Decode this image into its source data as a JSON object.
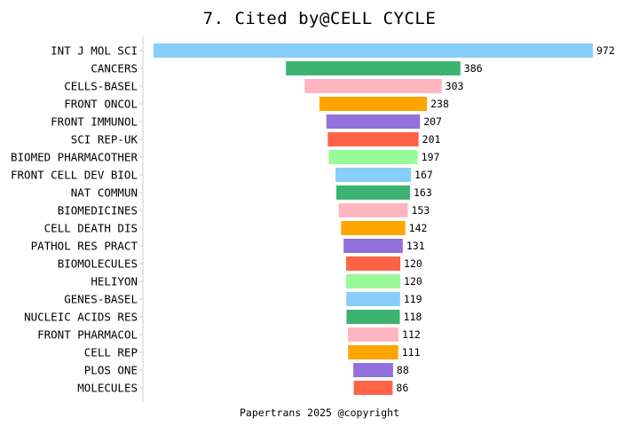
{
  "chart_data": {
    "type": "bar",
    "orientation": "horizontal",
    "layout": "centered-funnel",
    "title": "7. Cited by@CELL CYCLE",
    "footer": "Papertrans 2025 @copyright",
    "xlabel": "",
    "ylabel": "",
    "grid": false,
    "show_x_axis": false,
    "value_labels": true,
    "categories": [
      "INT J MOL SCI",
      "CANCERS",
      "CELLS-BASEL",
      "FRONT ONCOL",
      "FRONT IMMUNOL",
      "SCI REP-UK",
      "BIOMED PHARMACOTHER",
      "FRONT CELL DEV BIOL",
      "NAT COMMUN",
      "BIOMEDICINES",
      "CELL DEATH DIS",
      "PATHOL RES PRACT",
      "BIOMOLECULES",
      "HELIYON",
      "GENES-BASEL",
      "NUCLEIC ACIDS RES",
      "FRONT PHARMACOL",
      "CELL REP",
      "PLOS ONE",
      "MOLECULES"
    ],
    "values": [
      972,
      386,
      303,
      238,
      207,
      201,
      197,
      167,
      163,
      153,
      142,
      131,
      120,
      120,
      119,
      118,
      112,
      111,
      88,
      86
    ],
    "color_cycle": [
      "#87CEFA",
      "#3CB371",
      "#FFB6C1",
      "#FFA500",
      "#9370DB",
      "#FF6347",
      "#98FB98"
    ]
  }
}
